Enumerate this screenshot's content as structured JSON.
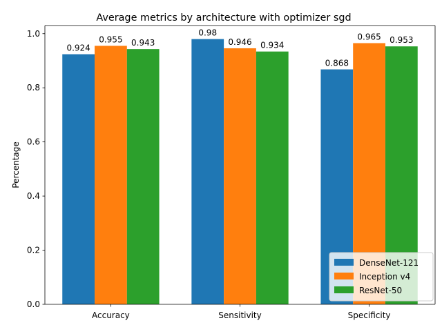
{
  "chart_data": {
    "type": "bar",
    "title": "Average metrics by architecture with optimizer sgd",
    "xlabel": "",
    "ylabel": "Percentage",
    "categories": [
      "Accuracy",
      "Sensitivity",
      "Specificity"
    ],
    "ylim": [
      0,
      1.03
    ],
    "yticks": [
      0.0,
      0.2,
      0.4,
      0.6,
      0.8,
      1.0
    ],
    "ytick_labels": [
      "0.0",
      "0.2",
      "0.4",
      "0.6",
      "0.8",
      "1.0"
    ],
    "grid": false,
    "legend_position": "lower right",
    "series": [
      {
        "name": "DenseNet-121",
        "color": "#1f77b4",
        "values": [
          0.924,
          0.98,
          0.868
        ],
        "labels": [
          "0.924",
          "0.98",
          "0.868"
        ]
      },
      {
        "name": "Inception v4",
        "color": "#ff7f0e",
        "values": [
          0.955,
          0.946,
          0.965
        ],
        "labels": [
          "0.955",
          "0.946",
          "0.965"
        ]
      },
      {
        "name": "ResNet-50",
        "color": "#2ca02c",
        "values": [
          0.943,
          0.934,
          0.953
        ],
        "labels": [
          "0.943",
          "0.934",
          "0.953"
        ]
      }
    ]
  }
}
